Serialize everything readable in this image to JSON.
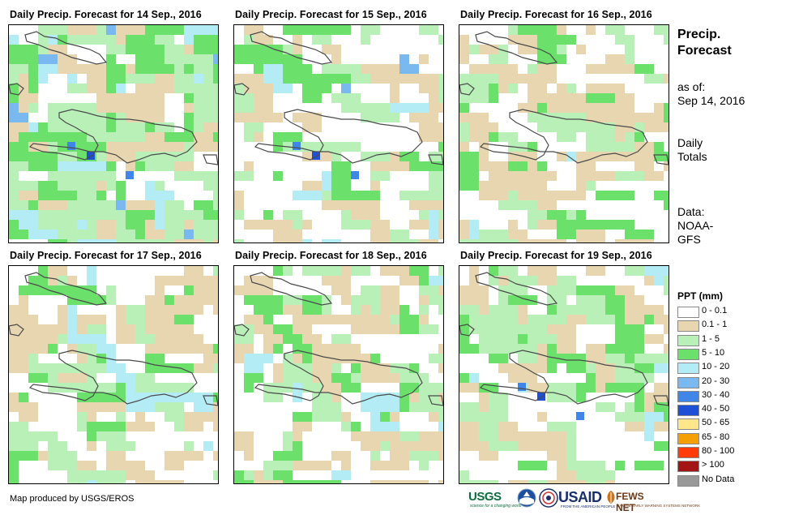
{
  "panels": [
    {
      "title": "Daily Precip. Forecast for 14 Sep., 2016"
    },
    {
      "title": "Daily Precip. Forecast for 15 Sep., 2016"
    },
    {
      "title": "Daily Precip. Forecast for 16 Sep., 2016"
    },
    {
      "title": "Daily Precip. Forecast for 17 Sep., 2016"
    },
    {
      "title": "Daily Precip. Forecast for 18 Sep., 2016"
    },
    {
      "title": "Daily Precip. Forecast for 19 Sep., 2016"
    }
  ],
  "side": {
    "title_line1": "Precip.",
    "title_line2": "Forecast",
    "asof_line1": "as of:",
    "asof_line2": "Sep 14, 2016",
    "totals_line1": "Daily",
    "totals_line2": "Totals",
    "data_line1": "Data:",
    "data_line2": "NOAA-",
    "data_line3": "GFS"
  },
  "legend": {
    "title": "PPT (mm)",
    "items": [
      {
        "label": "0 - 0.1",
        "color": "#ffffff"
      },
      {
        "label": "0.1 - 1",
        "color": "#e8d6b0"
      },
      {
        "label": "1 - 5",
        "color": "#b8f0b8"
      },
      {
        "label": "5 - 10",
        "color": "#6be06b"
      },
      {
        "label": "10 - 20",
        "color": "#b4ecf5"
      },
      {
        "label": "20 - 30",
        "color": "#7ab9f0"
      },
      {
        "label": "30 - 40",
        "color": "#3f86e8"
      },
      {
        "label": "40 - 50",
        "color": "#1f4fd4"
      },
      {
        "label": "50 - 65",
        "color": "#ffe68a"
      },
      {
        "label": "65 - 80",
        "color": "#f5a000"
      },
      {
        "label": "80 - 100",
        "color": "#ff3b0a"
      },
      {
        "label": "> 100",
        "color": "#a31515"
      },
      {
        "label": "No Data",
        "color": "#999999"
      }
    ]
  },
  "credit": "Map produced by USGS/EROS",
  "logos": {
    "usgs": "USGS",
    "usgs_tag": "science for a changing world",
    "usaid": "USAID",
    "usaid_tag": "FROM THE AMERICAN PEOPLE",
    "fews": "FEWS NET",
    "fews_tag": "FAMINE EARLY WARNING SYSTEMS NETWORK"
  }
}
